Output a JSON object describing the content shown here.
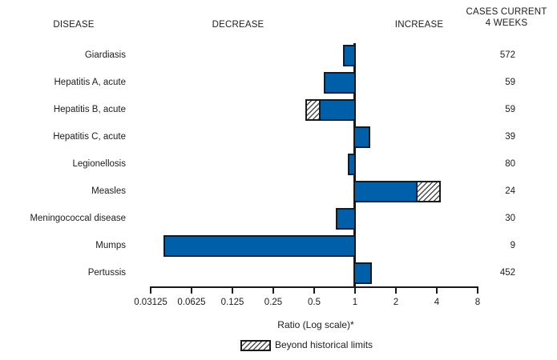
{
  "header": {
    "disease": "DISEASE",
    "decrease": "DECREASE",
    "increase": "INCREASE",
    "cases_line1": "CASES CURRENT",
    "cases_line2": "4 WEEKS"
  },
  "chart_data": {
    "type": "bar",
    "subtype": "horizontal-diverging-log",
    "scale": "log2",
    "baseline": 1,
    "xlabel": "Ratio (Log scale)*",
    "ticks": [
      0.03125,
      0.0625,
      0.125,
      0.25,
      0.5,
      1,
      2,
      4,
      8
    ],
    "tick_labels": [
      "0.03125",
      "0.0625",
      "0.125",
      "0.25",
      "0.5",
      "1",
      "2",
      "4",
      "8"
    ],
    "xlim": [
      0.03125,
      8
    ],
    "legend": [
      {
        "label": "Beyond historical limits",
        "style": "hatched"
      }
    ],
    "rows": [
      {
        "disease": "Giardiasis",
        "ratio": 0.82,
        "beyond_historical_limit": null,
        "cases_current_4_weeks": 572
      },
      {
        "disease": "Hepatitis A, acute",
        "ratio": 0.59,
        "beyond_historical_limit": null,
        "cases_current_4_weeks": 59
      },
      {
        "disease": "Hepatitis B, acute",
        "ratio": 0.43,
        "beyond_historical_limit": 0.54,
        "cases_current_4_weeks": 59
      },
      {
        "disease": "Hepatitis C, acute",
        "ratio": 1.29,
        "beyond_historical_limit": null,
        "cases_current_4_weeks": 39
      },
      {
        "disease": "Legionellosis",
        "ratio": 0.89,
        "beyond_historical_limit": null,
        "cases_current_4_weeks": 80
      },
      {
        "disease": "Measles",
        "ratio": 4.3,
        "beyond_historical_limit": 2.9,
        "cases_current_4_weeks": 24
      },
      {
        "disease": "Meningococcal disease",
        "ratio": 0.72,
        "beyond_historical_limit": null,
        "cases_current_4_weeks": 30
      },
      {
        "disease": "Mumps",
        "ratio": 0.039,
        "beyond_historical_limit": null,
        "cases_current_4_weeks": 9
      },
      {
        "disease": "Pertussis",
        "ratio": 1.33,
        "beyond_historical_limit": null,
        "cases_current_4_weeks": 452
      }
    ]
  },
  "colors": {
    "bar_fill": "#005fa9",
    "bar_border": "#16191d",
    "text": "#1c1c1c",
    "hatch_line": "#4d4d4d",
    "background": "#ffffff"
  }
}
